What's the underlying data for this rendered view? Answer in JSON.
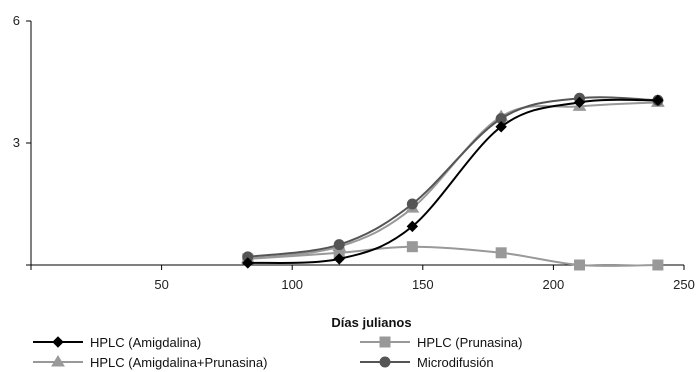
{
  "chart_data": {
    "type": "line",
    "title": "",
    "xlabel": "Días julianos",
    "ylabel": "",
    "xlim": [
      0,
      250
    ],
    "ylim": [
      0,
      6
    ],
    "x_ticks": [
      50,
      100,
      150,
      200,
      250
    ],
    "y_ticks": [
      3,
      6
    ],
    "grid": false,
    "legend_position": "bottom",
    "series": [
      {
        "name": "HPLC (Amigdalina)",
        "color": "#000000",
        "marker": "diamond",
        "x": [
          83,
          118,
          146,
          180,
          210,
          240
        ],
        "y": [
          0.05,
          0.15,
          0.95,
          3.4,
          4.0,
          4.05
        ]
      },
      {
        "name": "HPLC (Prunasina)",
        "color": "#999999",
        "marker": "square",
        "x": [
          83,
          118,
          146,
          180,
          210,
          240
        ],
        "y": [
          0.15,
          0.3,
          0.45,
          0.3,
          0.0,
          0.0
        ]
      },
      {
        "name": "HPLC (Amigdalina+Prunasina)",
        "color": "#999999",
        "marker": "triangle",
        "x": [
          83,
          118,
          146,
          180,
          210,
          240
        ],
        "y": [
          0.15,
          0.45,
          1.4,
          3.65,
          3.9,
          4.0
        ]
      },
      {
        "name": "Microdifusión",
        "color": "#555555",
        "marker": "circle",
        "x": [
          83,
          118,
          146,
          180,
          210,
          240
        ],
        "y": [
          0.2,
          0.5,
          1.5,
          3.6,
          4.1,
          4.05
        ]
      }
    ]
  }
}
